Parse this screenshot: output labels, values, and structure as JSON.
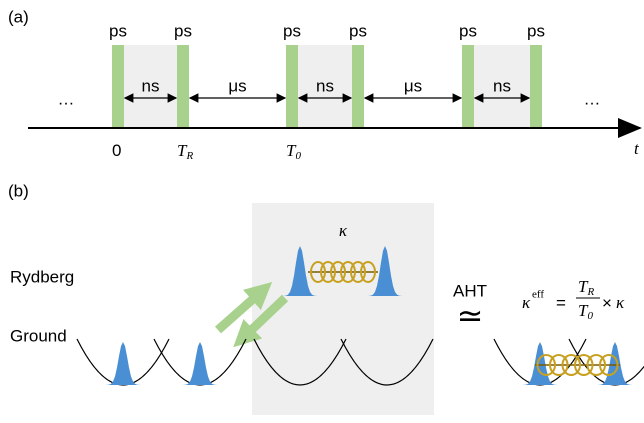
{
  "panel_a": {
    "label": "(a)",
    "pulse_labels": [
      "ps",
      "ps",
      "ps",
      "ps",
      "ps",
      "ps"
    ],
    "gap_labels": [
      "ns",
      "μs",
      "ns",
      "μs",
      "ns"
    ],
    "ellipsis": [
      "…",
      "…"
    ],
    "time_marks": [
      {
        "symbol": "0"
      },
      {
        "symbol": "T",
        "sub": "R"
      },
      {
        "symbol": "T",
        "sub": "0"
      }
    ],
    "axis_label": "t"
  },
  "panel_b": {
    "label": "(b)",
    "coupling": "κ",
    "levels": [
      "Rydberg",
      "Ground"
    ],
    "method": "AHT",
    "relation": "≃",
    "formula": {
      "lhs": "κ",
      "lhs_sup": "eff",
      "equals": "=",
      "num": "T",
      "num_sub": "R",
      "den": "T",
      "den_sub": "0",
      "times": "×",
      "rhs": "κ"
    }
  }
}
